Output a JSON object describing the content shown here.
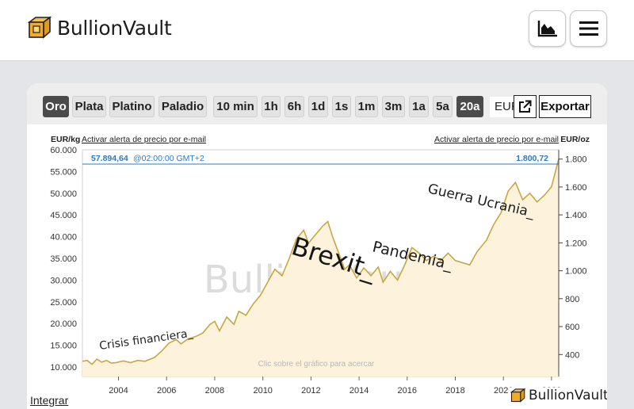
{
  "brand": {
    "name": "BullionVault"
  },
  "header": {
    "chart_icon": "area-chart-icon",
    "menu_icon": "hamburger-menu-icon"
  },
  "toolbar": {
    "metals": [
      {
        "label": "Oro",
        "active": true
      },
      {
        "label": "Plata",
        "active": false
      },
      {
        "label": "Platino",
        "active": false
      },
      {
        "label": "Paladio",
        "active": false
      }
    ],
    "ranges": [
      {
        "label": "10 min",
        "active": false
      },
      {
        "label": "1h",
        "active": false
      },
      {
        "label": "6h",
        "active": false
      },
      {
        "label": "1d",
        "active": false
      },
      {
        "label": "1s",
        "active": false
      },
      {
        "label": "1m",
        "active": false
      },
      {
        "label": "3m",
        "active": false
      },
      {
        "label": "1a",
        "active": false
      },
      {
        "label": "5a",
        "active": false
      },
      {
        "label": "20a",
        "active": true
      }
    ],
    "currency": "EUR",
    "external_icon": "external-link-icon",
    "export_label": "Exportar"
  },
  "chart": {
    "left_unit": "EUR/kg",
    "right_unit": "EUR/oz",
    "alert_left": "Activar alerta de precio por e-mail",
    "alert_right": "Activar alerta de precio por e-mail",
    "current_kg": "57.894,64",
    "current_time": "@02:00:00 GMT+2",
    "current_oz": "1.800,72",
    "click_hint": "Clic sobre el gráfico para acercar",
    "watermark": "BullionVault"
  },
  "chart_data": {
    "type": "area",
    "x_ticks": [
      "2004",
      "2006",
      "2008",
      "2010",
      "2012",
      "2014",
      "2016",
      "2018",
      "2020",
      "2022"
    ],
    "y_left_ticks": [
      "10.000",
      "15.000",
      "20.000",
      "25.000",
      "30.000",
      "35.000",
      "40.000",
      "45.000",
      "50.000",
      "55.000",
      "60.000"
    ],
    "y_right_ticks": [
      "400",
      "600",
      "800",
      "1.000",
      "1.200",
      "1.400",
      "1.600",
      "1.800"
    ],
    "y_left_range": [
      7800,
      60000
    ],
    "x_range": [
      2002.5,
      2022.3
    ],
    "series": [
      {
        "x": [
          2002.5,
          2002.7,
          2002.9,
          2003.1,
          2003.3,
          2003.5,
          2003.7,
          2003.9,
          2004.2,
          2004.5,
          2004.8,
          2005.1,
          2005.5,
          2005.8,
          2006.1,
          2006.4,
          2006.6,
          2006.9,
          2007.2,
          2007.5,
          2007.8,
          2008.0,
          2008.2,
          2008.5,
          2008.8,
          2009.0,
          2009.3,
          2009.6,
          2009.9,
          2010.2,
          2010.5,
          2010.8,
          2011.1,
          2011.4,
          2011.7,
          2011.9,
          2012.2,
          2012.5,
          2012.7,
          2012.9,
          2013.2,
          2013.4,
          2013.6,
          2013.9,
          2014.2,
          2014.5,
          2014.8,
          2015.0,
          2015.3,
          2015.6,
          2015.9,
          2016.2,
          2016.5,
          2016.8,
          2017.1,
          2017.4,
          2017.7,
          2018.0,
          2018.3,
          2018.6,
          2018.9,
          2019.3,
          2019.6,
          2019.9,
          2020.2,
          2020.5,
          2020.8,
          2021.1,
          2021.4,
          2021.7,
          2022.0,
          2022.3
        ],
        "y": [
          11300,
          11500,
          10600,
          11800,
          11100,
          11500,
          10900,
          11000,
          11400,
          11000,
          11500,
          11300,
          12200,
          13700,
          15500,
          16300,
          15300,
          16500,
          17000,
          17800,
          19800,
          20500,
          18300,
          21500,
          19800,
          22800,
          21900,
          24500,
          26500,
          29500,
          32500,
          31000,
          35000,
          39500,
          41500,
          38500,
          40500,
          42500,
          43500,
          40000,
          35500,
          32500,
          33500,
          30500,
          32800,
          31000,
          33000,
          29500,
          32000,
          30000,
          33500,
          37500,
          36200,
          34500,
          35500,
          34500,
          36200,
          34500,
          34000,
          33500,
          36500,
          39200,
          42800,
          45500,
          50500,
          52500,
          48500,
          50000,
          48000,
          49500,
          51500,
          57900
        ]
      }
    ],
    "annotations": [
      "Crisis financiera_",
      "Brexit_",
      "Pandemia_",
      "Guerra Ucrania_"
    ]
  },
  "footer": {
    "integrar": "Integrar",
    "brand": "BullionVault"
  },
  "colors": {
    "line": "#c9a640",
    "fill": "#fdf3dd",
    "price_line": "#2d7bbf",
    "dark_button": "#4b4b4b"
  }
}
